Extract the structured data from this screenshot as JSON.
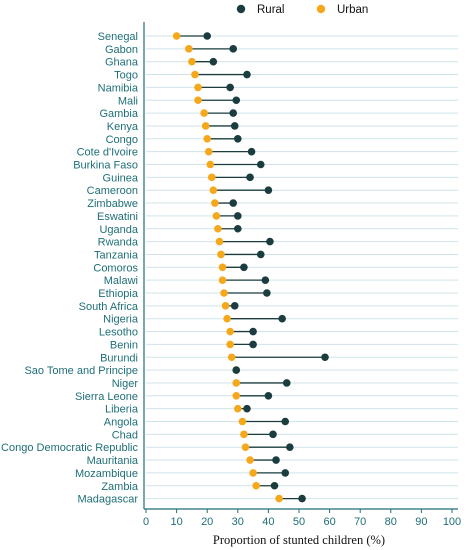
{
  "chart_data": {
    "type": "dumbbell",
    "xlabel": "Proportion of stunted children (%)",
    "xlim": [
      0,
      100
    ],
    "xticks": [
      0,
      10,
      20,
      30,
      40,
      50,
      60,
      70,
      80,
      90,
      100
    ],
    "grid": true,
    "legend_position": "top-right",
    "series": [
      {
        "name": "Rural",
        "color": "#1b3d3f"
      },
      {
        "name": "Urban",
        "color": "#f5a81c"
      }
    ],
    "categories": [
      "Senegal",
      "Gabon",
      "Ghana",
      "Togo",
      "Namibia",
      "Mali",
      "Gambia",
      "Kenya",
      "Congo",
      "Cote d'Ivoire",
      "Burkina Faso",
      "Guinea",
      "Cameroon",
      "Zimbabwe",
      "Eswatini",
      "Uganda",
      "Rwanda",
      "Tanzania",
      "Comoros",
      "Malawi",
      "Ethiopia",
      "South Africa",
      "Nigeria",
      "Lesotho",
      "Benin",
      "Burundi",
      "Sao Tome and Principe",
      "Niger",
      "Sierra Leone",
      "Liberia",
      "Angola",
      "Chad",
      "Congo Democratic Republic",
      "Mauritania",
      "Mozambique",
      "Zambia",
      "Madagascar"
    ],
    "rural": [
      20,
      28.5,
      22,
      33,
      27.5,
      29.5,
      28.5,
      29,
      30,
      34.5,
      37.5,
      34,
      40,
      28.5,
      30,
      30,
      40.5,
      37.5,
      32,
      39,
      39.5,
      29,
      44.5,
      35,
      35,
      58.5,
      29.5,
      46,
      40,
      33,
      45.5,
      41.5,
      47,
      42.5,
      45.5,
      42,
      51
    ],
    "urban": [
      10,
      14,
      15,
      16,
      17,
      17,
      19,
      19.5,
      20,
      20.5,
      21,
      21.5,
      22,
      22.5,
      23,
      23.5,
      24,
      24.5,
      25,
      25,
      25.5,
      26,
      26.5,
      27.5,
      27.5,
      28,
      29.5,
      29.5,
      29.5,
      30,
      31.5,
      32,
      32.5,
      34,
      35,
      36,
      43.5
    ]
  }
}
